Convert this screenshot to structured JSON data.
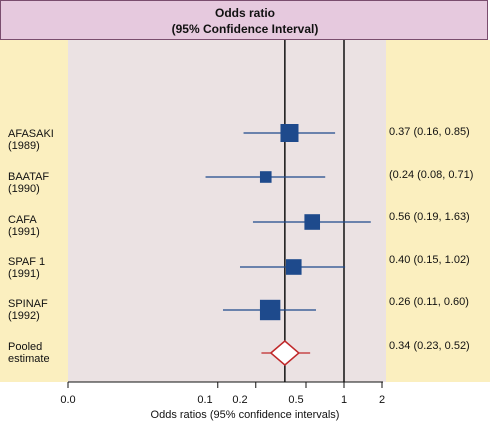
{
  "header": {
    "title": "Odds ratio",
    "subtitle": "(95% Confidence Interval)"
  },
  "colors": {
    "side_bg": "#fbefbf",
    "center_bg": "#ebe2e3",
    "header_bg": "#e6c9de",
    "marker": "#1e4a8c",
    "pooled": "#c0282a"
  },
  "chart_data": {
    "type": "forest",
    "title": "Odds ratio",
    "subtitle": "(95% Confidence Interval)",
    "xlabel": "Odds ratios (95% confidence intervals)",
    "x_scale": "log",
    "xlim": [
      0.0,
      2
    ],
    "x_ticks": [
      {
        "value": 0.0,
        "label": "0.0"
      },
      {
        "value": 0.1,
        "label": "0.1"
      },
      {
        "value": 0.2,
        "label": "0.2"
      },
      {
        "value": 0.5,
        "label": "0.5"
      },
      {
        "value": 1,
        "label": "1"
      },
      {
        "value": 2,
        "label": "2"
      }
    ],
    "reference_lines": [
      1,
      0.34
    ],
    "studies": [
      {
        "name": "AFASAKI",
        "year": "(1989)",
        "or": 0.37,
        "lo": 0.16,
        "hi": 0.85,
        "weight": 1.0,
        "text": "0.37 (0.16, 0.85)"
      },
      {
        "name": "BAATAF",
        "year": "(1990)",
        "or": 0.24,
        "lo": 0.08,
        "hi": 0.71,
        "weight": 0.6,
        "text": "(0.24 (0.08, 0.71)"
      },
      {
        "name": "CAFA",
        "year": "(1991)",
        "or": 0.56,
        "lo": 0.19,
        "hi": 1.63,
        "weight": 0.85,
        "text": "0.56 (0.19, 1.63)"
      },
      {
        "name": "SPAF 1",
        "year": "(1991)",
        "or": 0.4,
        "lo": 0.15,
        "hi": 1.02,
        "weight": 0.85,
        "text": "0.40 (0.15, 1.02)"
      },
      {
        "name": "SPINAF",
        "year": "(1992)",
        "or": 0.26,
        "lo": 0.11,
        "hi": 0.6,
        "weight": 1.15,
        "text": "0.26 (0.11, 0.60)"
      }
    ],
    "pooled": {
      "name": "Pooled",
      "year": "estimate",
      "or": 0.34,
      "lo": 0.23,
      "hi": 0.52,
      "text": "0.34 (0.23, 0.52)"
    }
  }
}
